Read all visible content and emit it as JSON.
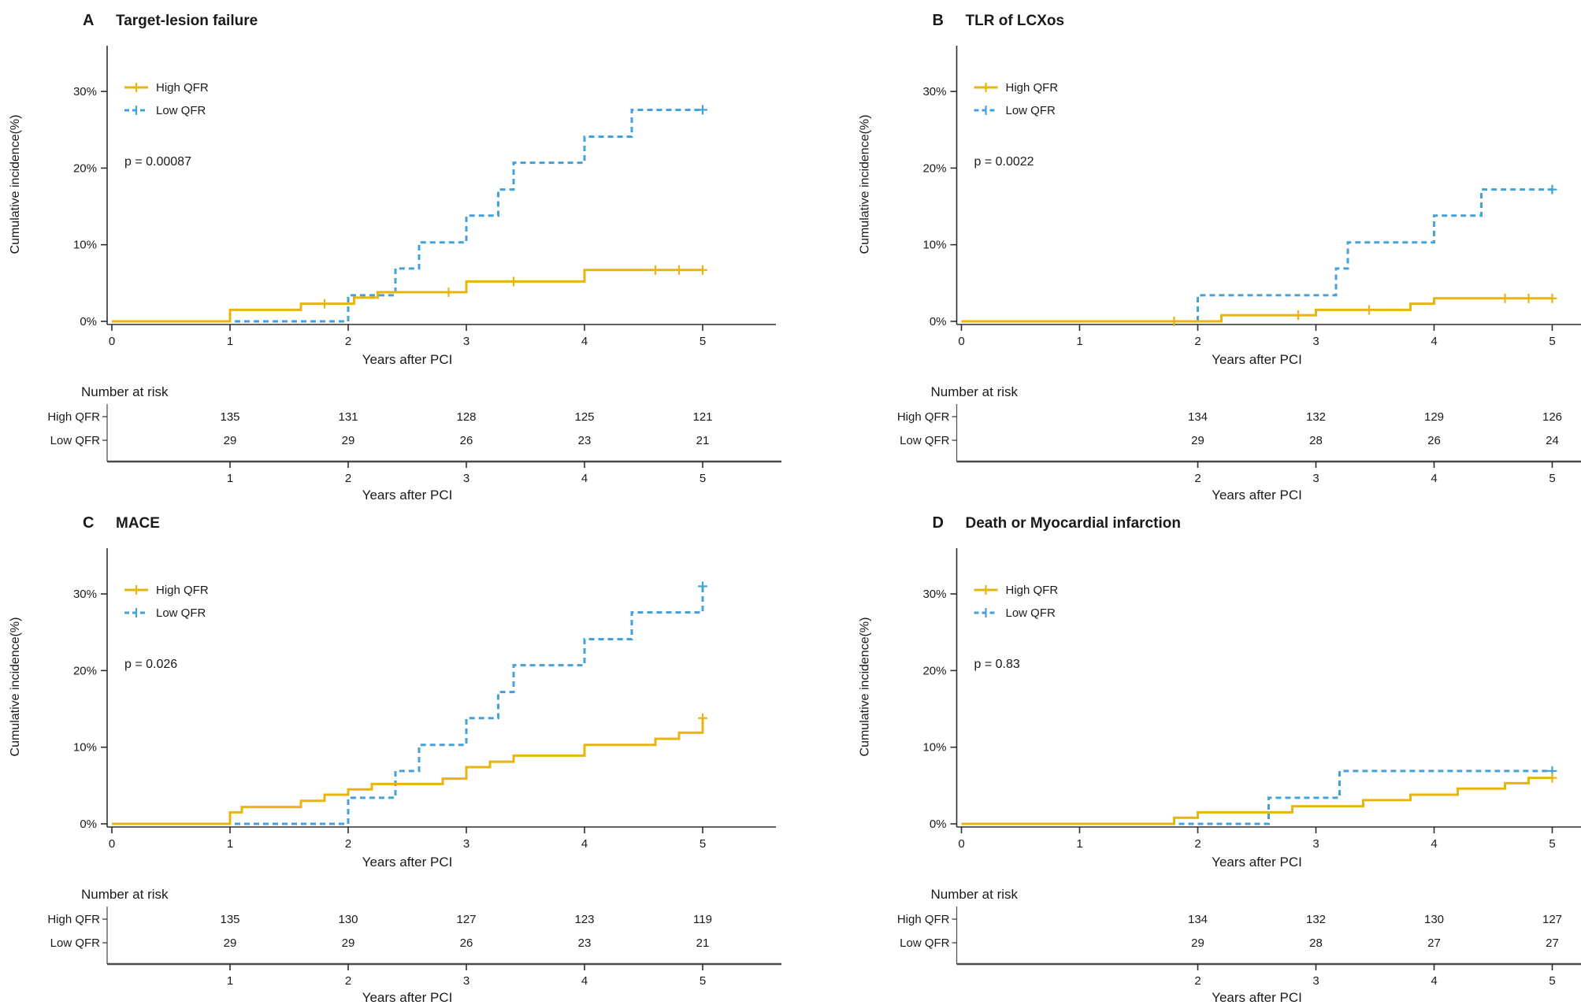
{
  "figure": {
    "ylabel": "Cumulative incidence(%)",
    "xlabel": "Years after PCI",
    "risk_header": "Number at risk",
    "y_tick_labels": [
      "0%",
      "10%",
      "20%",
      "30%"
    ],
    "x_tick_labels": [
      "0",
      "1",
      "2",
      "3",
      "4",
      "5"
    ],
    "colors": {
      "high": "#E8B50F",
      "low": "#45A1D9",
      "axis": "#2e2e2e",
      "risk_axis": "#4a4a4a",
      "text": "#1a1a1a"
    }
  },
  "chart_data": [
    {
      "type": "line",
      "step": true,
      "letter": "A",
      "title": "Target-lesion failure",
      "p_label": "p = 0.00087",
      "xlabel": "Years after PCI",
      "ylabel": "Cumulative incidence(%)",
      "x_range": [
        0,
        5
      ],
      "y_range_pct": [
        0,
        37
      ],
      "legend_position": "upper-left",
      "series": [
        {
          "name": "High QFR",
          "color_key": "high",
          "dash": false,
          "points": [
            [
              0,
              0
            ],
            [
              1,
              1.5
            ],
            [
              1.6,
              2.3
            ],
            [
              2.05,
              3.1
            ],
            [
              2.25,
              3.8
            ],
            [
              3,
              5.2
            ],
            [
              4,
              6.7
            ]
          ],
          "end_x": 5,
          "censors": [
            [
              1.8,
              2.3
            ],
            [
              2.85,
              3.8
            ],
            [
              3.4,
              5.2
            ],
            [
              4.6,
              6.7
            ],
            [
              4.8,
              6.7
            ],
            [
              5,
              6.7
            ]
          ]
        },
        {
          "name": "Low QFR",
          "color_key": "low",
          "dash": true,
          "points": [
            [
              0,
              0
            ],
            [
              2,
              3.4
            ],
            [
              2.4,
              6.9
            ],
            [
              2.6,
              10.3
            ],
            [
              3,
              13.8
            ],
            [
              3.27,
              17.2
            ],
            [
              3.4,
              20.7
            ],
            [
              4,
              24.1
            ],
            [
              4.4,
              27.6
            ]
          ],
          "end_x": 5,
          "censors": [
            [
              5,
              27.6
            ]
          ]
        }
      ],
      "risk_table": {
        "header": "Number at risk",
        "ticks": [
          "1",
          "2",
          "3",
          "4",
          "5"
        ],
        "tick_years": [
          1,
          2,
          3,
          4,
          5
        ],
        "xlabel": "Years after PCI",
        "rows": [
          {
            "label": "High QFR",
            "color_key": "high",
            "values": [
              "135",
              "131",
              "128",
              "125",
              "121"
            ]
          },
          {
            "label": "Low QFR",
            "color_key": "low",
            "values": [
              "29",
              "29",
              "26",
              "23",
              "21"
            ]
          }
        ]
      },
      "layout": {
        "xoff": 0
      }
    },
    {
      "type": "line",
      "step": true,
      "letter": "B",
      "title": "TLR of LCXos",
      "p_label": "p = 0.0022",
      "xlabel": "Years after PCI",
      "ylabel": "Cumulative incidence(%)",
      "x_range": [
        0,
        5
      ],
      "y_range_pct": [
        0,
        37
      ],
      "legend_position": "upper-left",
      "series": [
        {
          "name": "High QFR",
          "color_key": "high",
          "dash": false,
          "points": [
            [
              0,
              0
            ],
            [
              2.2,
              0.8
            ],
            [
              3,
              1.5
            ],
            [
              3.8,
              2.3
            ],
            [
              4,
              3.0
            ]
          ],
          "end_x": 5,
          "censors": [
            [
              1.8,
              0
            ],
            [
              2.85,
              0.8
            ],
            [
              3.45,
              1.5
            ],
            [
              4.6,
              3.0
            ],
            [
              4.8,
              3.0
            ],
            [
              5,
              3.0
            ]
          ]
        },
        {
          "name": "Low QFR",
          "color_key": "low",
          "dash": true,
          "points": [
            [
              0,
              0
            ],
            [
              2,
              3.4
            ],
            [
              3.17,
              6.9
            ],
            [
              3.27,
              10.3
            ],
            [
              4,
              13.8
            ],
            [
              4.4,
              17.2
            ]
          ],
          "end_x": 5,
          "censors": [
            [
              5,
              17.2
            ]
          ]
        }
      ],
      "risk_table": {
        "header": "Number at risk",
        "ticks": [
          "2",
          "3",
          "4",
          "5"
        ],
        "tick_years": [
          2,
          3,
          4,
          5
        ],
        "xlabel": "Years after PCI",
        "rows": [
          {
            "label": "High QFR",
            "color_key": "high",
            "values": [
              "134",
              "132",
              "129",
              "126"
            ]
          },
          {
            "label": "Low QFR",
            "color_key": "low",
            "values": [
              "29",
              "28",
              "26",
              "24"
            ]
          }
        ]
      },
      "layout": {
        "xoff": 75
      }
    },
    {
      "type": "line",
      "step": true,
      "letter": "C",
      "title": "MACE",
      "p_label": "p = 0.026",
      "xlabel": "Years after PCI",
      "ylabel": "Cumulative incidence(%)",
      "x_range": [
        0,
        5
      ],
      "y_range_pct": [
        0,
        37
      ],
      "legend_position": "upper-left",
      "series": [
        {
          "name": "High QFR",
          "color_key": "high",
          "dash": false,
          "points": [
            [
              0,
              0
            ],
            [
              1,
              1.5
            ],
            [
              1.1,
              2.2
            ],
            [
              1.6,
              3.0
            ],
            [
              1.8,
              3.8
            ],
            [
              2,
              4.5
            ],
            [
              2.2,
              5.2
            ],
            [
              2.8,
              5.9
            ],
            [
              3,
              7.4
            ],
            [
              3.2,
              8.1
            ],
            [
              3.4,
              8.9
            ],
            [
              4,
              10.3
            ],
            [
              4.6,
              11.1
            ],
            [
              4.8,
              11.9
            ],
            [
              5,
              13.8
            ]
          ],
          "end_x": 5,
          "censors": [
            [
              5,
              13.8
            ]
          ]
        },
        {
          "name": "Low QFR",
          "color_key": "low",
          "dash": true,
          "points": [
            [
              0,
              0
            ],
            [
              2,
              3.4
            ],
            [
              2.4,
              6.9
            ],
            [
              2.6,
              10.3
            ],
            [
              3,
              13.8
            ],
            [
              3.27,
              17.2
            ],
            [
              3.4,
              20.7
            ],
            [
              4,
              24.1
            ],
            [
              4.4,
              27.6
            ],
            [
              5,
              31.0
            ]
          ],
          "end_x": 5,
          "censors": [
            [
              5,
              31.0
            ]
          ]
        }
      ],
      "risk_table": {
        "header": "Number at risk",
        "ticks": [
          "1",
          "2",
          "3",
          "4",
          "5"
        ],
        "tick_years": [
          1,
          2,
          3,
          4,
          5
        ],
        "xlabel": "Years after PCI",
        "rows": [
          {
            "label": "High QFR",
            "color_key": "high",
            "values": [
              "135",
              "130",
              "127",
              "123",
              "119"
            ]
          },
          {
            "label": "Low QFR",
            "color_key": "low",
            "values": [
              "29",
              "29",
              "26",
              "23",
              "21"
            ]
          }
        ]
      },
      "layout": {
        "xoff": 0
      }
    },
    {
      "type": "line",
      "step": true,
      "letter": "D",
      "title": "Death or Myocardial infarction",
      "p_label": "p = 0.83",
      "xlabel": "Years after PCI",
      "ylabel": "Cumulative incidence(%)",
      "x_range": [
        0,
        5
      ],
      "y_range_pct": [
        0,
        37
      ],
      "legend_position": "upper-left",
      "series": [
        {
          "name": "High QFR",
          "color_key": "high",
          "dash": false,
          "points": [
            [
              0,
              0
            ],
            [
              1.8,
              0.8
            ],
            [
              2,
              1.5
            ],
            [
              2.8,
              2.3
            ],
            [
              3.4,
              3.1
            ],
            [
              3.8,
              3.8
            ],
            [
              4.2,
              4.6
            ],
            [
              4.6,
              5.3
            ],
            [
              4.8,
              6.0
            ]
          ],
          "end_x": 5,
          "censors": [
            [
              5,
              6.0
            ]
          ]
        },
        {
          "name": "Low QFR",
          "color_key": "low",
          "dash": true,
          "points": [
            [
              0,
              0
            ],
            [
              2.6,
              3.4
            ],
            [
              3.2,
              6.9
            ]
          ],
          "end_x": 5,
          "censors": [
            [
              5,
              6.9
            ]
          ]
        }
      ],
      "risk_table": {
        "header": "Number at risk",
        "ticks": [
          "2",
          "3",
          "4",
          "5"
        ],
        "tick_years": [
          2,
          3,
          4,
          5
        ],
        "xlabel": "Years after PCI",
        "rows": [
          {
            "label": "High QFR",
            "color_key": "high",
            "values": [
              "134",
              "132",
              "130",
              "127"
            ]
          },
          {
            "label": "Low QFR",
            "color_key": "low",
            "values": [
              "29",
              "28",
              "27",
              "27"
            ]
          }
        ]
      },
      "layout": {
        "xoff": 75
      }
    }
  ]
}
